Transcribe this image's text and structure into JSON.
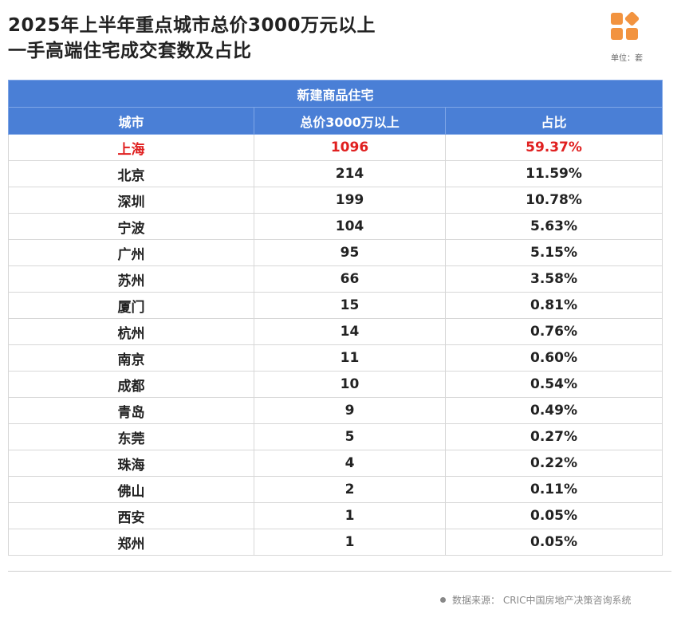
{
  "header": {
    "title_line1": "2025年上半年重点城市总价3000万元以上",
    "title_line2": "一手高端住宅成交套数及占比",
    "unit": "单位：套"
  },
  "footer": {
    "source": "数据来源：  CRIC中国房地产决策咨询系统"
  },
  "colors": {
    "header_blue": "#4a7fd6",
    "logo_orange": "#f2933f",
    "highlight_red": "#e02020"
  },
  "chart_data": {
    "type": "table",
    "group_header": "新建商品住宅",
    "columns": [
      "城市",
      "总价3000万以上",
      "占比"
    ],
    "rows": [
      [
        "上海",
        "1096",
        "59.37%"
      ],
      [
        "北京",
        "214",
        "11.59%"
      ],
      [
        "深圳",
        "199",
        "10.78%"
      ],
      [
        "宁波",
        "104",
        "5.63%"
      ],
      [
        "广州",
        "95",
        "5.15%"
      ],
      [
        "苏州",
        "66",
        "3.58%"
      ],
      [
        "厦门",
        "15",
        "0.81%"
      ],
      [
        "杭州",
        "14",
        "0.76%"
      ],
      [
        "南京",
        "11",
        "0.60%"
      ],
      [
        "成都",
        "10",
        "0.54%"
      ],
      [
        "青岛",
        "9",
        "0.49%"
      ],
      [
        "东莞",
        "5",
        "0.27%"
      ],
      [
        "珠海",
        "4",
        "0.22%"
      ],
      [
        "佛山",
        "2",
        "0.11%"
      ],
      [
        "西安",
        "1",
        "0.05%"
      ],
      [
        "郑州",
        "1",
        "0.05%"
      ]
    ],
    "highlight_row": 0
  }
}
